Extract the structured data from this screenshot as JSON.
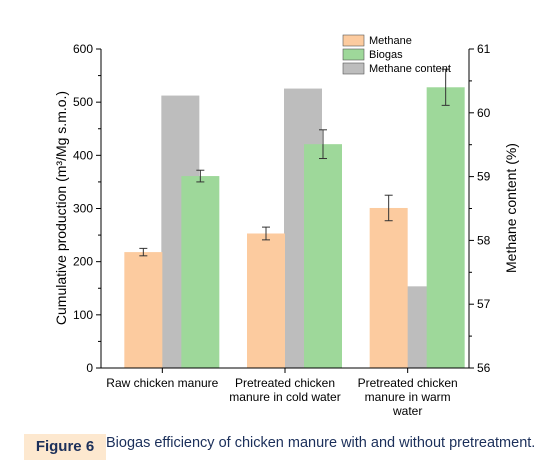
{
  "chart_data": {
    "type": "bar",
    "categories": [
      [
        "Raw chicken manure"
      ],
      [
        "Pretreated chicken",
        "manure in cold water"
      ],
      [
        "Pretreated chicken",
        "manure in warm",
        "water"
      ]
    ],
    "series": [
      {
        "name": "Methane",
        "axis": "left",
        "values": [
          218,
          253,
          301
        ],
        "errors": [
          7,
          12,
          24
        ],
        "color": "#fccb9f"
      },
      {
        "name": "Biogas",
        "axis": "left",
        "values": [
          361,
          421,
          528
        ],
        "errors": [
          11,
          27,
          34
        ],
        "color": "#9ed89a"
      },
      {
        "name": "Methane content",
        "axis": "right",
        "values": [
          60.27,
          60.38,
          57.28
        ],
        "color": "#bdbdbd"
      }
    ],
    "ylabel": "Cumulative production (m³/Mg s.m.o.)",
    "y2label": "Methane content (%)",
    "ylim": [
      0,
      600
    ],
    "y2lim": [
      56,
      61
    ],
    "yticks": [
      0,
      100,
      200,
      300,
      400,
      500,
      600
    ],
    "y2ticks": [
      56,
      57,
      58,
      59,
      60,
      61
    ],
    "grid": false,
    "legend_position": "top-right"
  },
  "caption": {
    "label": "Figure 6",
    "text": "Biogas efficiency of chicken manure with and without pretreatment."
  }
}
